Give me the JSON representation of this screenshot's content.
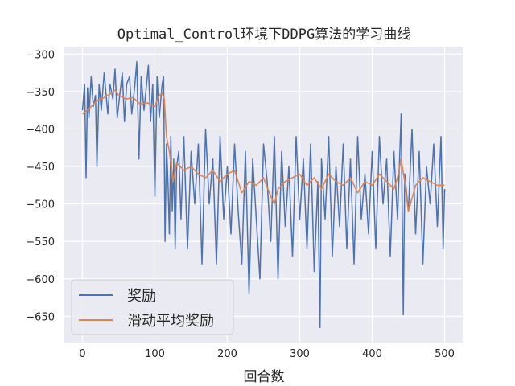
{
  "chart_data": {
    "type": "line",
    "title": "Optimal_Control环境下DDPG算法的学习曲线",
    "xlabel": "回合数",
    "ylabel": "",
    "xlim": [
      -25,
      525
    ],
    "ylim": [
      -685,
      -290
    ],
    "xticks": [
      0,
      100,
      200,
      300,
      400,
      500
    ],
    "yticks": [
      -300,
      -350,
      -400,
      -450,
      -500,
      -550,
      -600,
      -650
    ],
    "grid": true,
    "legend": "lower-left",
    "series": [
      {
        "name": "奖励",
        "color": "#4c72b0",
        "x": [
          0,
          3,
          5,
          7,
          9,
          12,
          15,
          18,
          20,
          23,
          26,
          30,
          35,
          38,
          42,
          45,
          48,
          52,
          55,
          58,
          61,
          65,
          68,
          72,
          75,
          78,
          81,
          85,
          88,
          91,
          94,
          97,
          100,
          103,
          106,
          110,
          112,
          114,
          116,
          118,
          120,
          122,
          124,
          126,
          128,
          130,
          133,
          136,
          140,
          145,
          150,
          155,
          160,
          165,
          170,
          175,
          180,
          185,
          190,
          195,
          200,
          205,
          210,
          215,
          220,
          225,
          230,
          235,
          240,
          245,
          250,
          255,
          260,
          265,
          270,
          275,
          280,
          285,
          290,
          295,
          300,
          305,
          310,
          315,
          320,
          325,
          328,
          330,
          335,
          340,
          345,
          350,
          355,
          360,
          365,
          370,
          375,
          380,
          385,
          390,
          395,
          400,
          405,
          410,
          415,
          420,
          425,
          430,
          435,
          440,
          443,
          445,
          450,
          455,
          460,
          465,
          470,
          475,
          480,
          485,
          490,
          495,
          498,
          500
        ],
        "values": [
          -375,
          -340,
          -465,
          -345,
          -385,
          -330,
          -370,
          -355,
          -450,
          -340,
          -375,
          -325,
          -380,
          -340,
          -360,
          -320,
          -385,
          -350,
          -325,
          -390,
          -340,
          -330,
          -380,
          -345,
          -310,
          -440,
          -330,
          -375,
          -345,
          -315,
          -390,
          -340,
          -490,
          -330,
          -385,
          -340,
          -330,
          -550,
          -420,
          -470,
          -540,
          -410,
          -510,
          -440,
          -560,
          -450,
          -430,
          -520,
          -410,
          -560,
          -430,
          -500,
          -420,
          -580,
          -400,
          -500,
          -440,
          -580,
          -410,
          -520,
          -450,
          -540,
          -420,
          -510,
          -580,
          -430,
          -620,
          -440,
          -520,
          -600,
          -420,
          -470,
          -550,
          -410,
          -600,
          -430,
          -530,
          -450,
          -570,
          -410,
          -520,
          -440,
          -560,
          -420,
          -590,
          -470,
          -665,
          -440,
          -520,
          -410,
          -570,
          -450,
          -530,
          -420,
          -560,
          -440,
          -580,
          -410,
          -520,
          -460,
          -540,
          -430,
          -560,
          -410,
          -500,
          -440,
          -570,
          -430,
          -520,
          -380,
          -648,
          -460,
          -510,
          -400,
          -540,
          -430,
          -580,
          -450,
          -500,
          -420,
          -530,
          -410,
          -560,
          -480
        ]
      },
      {
        "name": "滑动平均奖励",
        "color": "#dd8452",
        "x": [
          0,
          10,
          20,
          30,
          40,
          45,
          50,
          60,
          70,
          80,
          90,
          100,
          105,
          110,
          113,
          116,
          120,
          125,
          130,
          140,
          150,
          160,
          170,
          180,
          190,
          200,
          210,
          215,
          220,
          230,
          240,
          250,
          260,
          265,
          270,
          280,
          290,
          300,
          310,
          320,
          330,
          340,
          350,
          360,
          370,
          380,
          390,
          400,
          410,
          420,
          430,
          435,
          440,
          445,
          450,
          460,
          470,
          480,
          490,
          500
        ],
        "values": [
          -380,
          -372,
          -362,
          -358,
          -352,
          -348,
          -355,
          -360,
          -358,
          -367,
          -365,
          -370,
          -356,
          -352,
          -360,
          -410,
          -430,
          -470,
          -445,
          -455,
          -450,
          -460,
          -465,
          -455,
          -470,
          -460,
          -455,
          -470,
          -485,
          -470,
          -475,
          -465,
          -490,
          -500,
          -480,
          -470,
          -465,
          -460,
          -475,
          -465,
          -480,
          -460,
          -470,
          -475,
          -465,
          -485,
          -470,
          -475,
          -460,
          -470,
          -480,
          -465,
          -440,
          -470,
          -510,
          -475,
          -465,
          -470,
          -475,
          -475
        ]
      }
    ]
  }
}
